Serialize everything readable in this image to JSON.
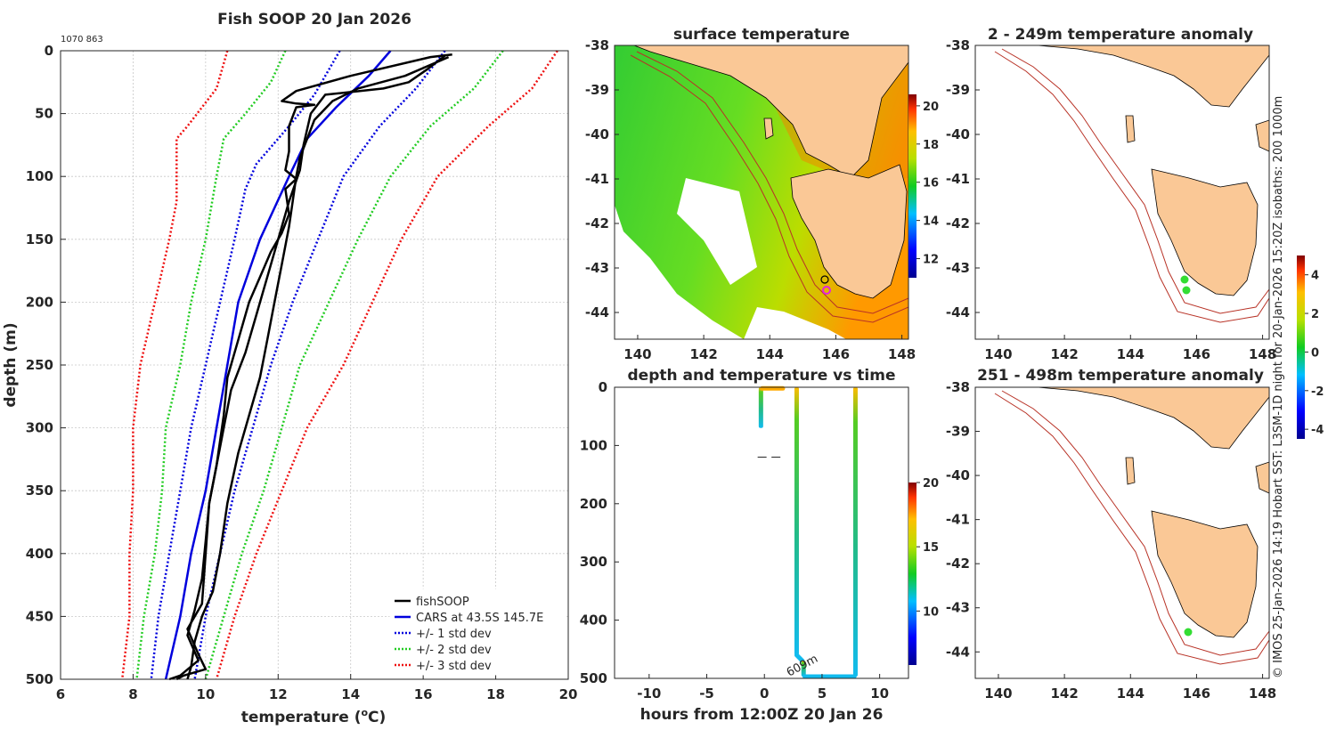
{
  "colors": {
    "fishsoop": "#000000",
    "cars": "#0000dd",
    "std1": "#0000dd",
    "std2": "#22cc22",
    "std3": "#ee1111",
    "land": "#fac896",
    "coast": "#000000",
    "isobath": "#b83226"
  },
  "profile_chart": {
    "title": "Fish SOOP 20 Jan 2026",
    "ids_label": "1070 863",
    "xlabel_prefix": "temperature (",
    "xlabel_sup": "o",
    "xlabel_suffix": "C)",
    "ylabel": "depth (m)",
    "xlim": [
      6,
      20
    ],
    "ylim": [
      500,
      0
    ],
    "xticks": [
      "6",
      "8",
      "10",
      "12",
      "14",
      "16",
      "18",
      "20"
    ],
    "yticks": [
      "0",
      "50",
      "100",
      "150",
      "200",
      "250",
      "300",
      "350",
      "400",
      "450",
      "500"
    ],
    "legend": [
      {
        "label": "fishSOOP",
        "style": "solid-black"
      },
      {
        "label": "CARS at 43.5S 145.7E",
        "style": "solid-blue"
      },
      {
        "label": "+/- 1 std dev",
        "style": "dotted-blue"
      },
      {
        "label": "+/- 2 std dev",
        "style": "dotted-green"
      },
      {
        "label": "+/- 3 std dev",
        "style": "dotted-red"
      }
    ],
    "chart_data": {
      "type": "line",
      "series": [
        {
          "name": "CARS at 43.5S 145.7E",
          "kind": "cars",
          "points": [
            [
              15.1,
              0
            ],
            [
              14.5,
              20
            ],
            [
              13.6,
              45
            ],
            [
              12.8,
              70
            ],
            [
              12.3,
              100
            ],
            [
              11.9,
              125
            ],
            [
              11.5,
              150
            ],
            [
              11.2,
              175
            ],
            [
              10.9,
              200
            ],
            [
              10.6,
              250
            ],
            [
              10.3,
              300
            ],
            [
              10.0,
              350
            ],
            [
              9.6,
              400
            ],
            [
              9.3,
              450
            ],
            [
              8.9,
              500
            ]
          ]
        },
        {
          "name": "-1 std",
          "kind": "std1",
          "points": [
            [
              13.7,
              0
            ],
            [
              13.0,
              35
            ],
            [
              12.3,
              60
            ],
            [
              11.4,
              90
            ],
            [
              11.1,
              110
            ],
            [
              10.8,
              150
            ],
            [
              10.4,
              200
            ],
            [
              10.0,
              250
            ],
            [
              9.6,
              300
            ],
            [
              9.3,
              350
            ],
            [
              9.0,
              400
            ],
            [
              8.7,
              450
            ],
            [
              8.5,
              500
            ]
          ]
        },
        {
          "name": "+1 std",
          "kind": "std1",
          "points": [
            [
              16.6,
              0
            ],
            [
              15.8,
              30
            ],
            [
              14.8,
              60
            ],
            [
              13.8,
              100
            ],
            [
              13.1,
              150
            ],
            [
              12.4,
              200
            ],
            [
              11.8,
              250
            ],
            [
              11.3,
              300
            ],
            [
              10.8,
              350
            ],
            [
              10.4,
              400
            ],
            [
              10.0,
              450
            ],
            [
              9.7,
              500
            ]
          ]
        },
        {
          "name": "-2 std",
          "kind": "std2",
          "points": [
            [
              12.2,
              0
            ],
            [
              11.8,
              25
            ],
            [
              11.1,
              50
            ],
            [
              10.5,
              70
            ],
            [
              10.3,
              100
            ],
            [
              10.0,
              150
            ],
            [
              9.6,
              200
            ],
            [
              9.3,
              250
            ],
            [
              8.9,
              300
            ],
            [
              8.8,
              350
            ],
            [
              8.6,
              400
            ],
            [
              8.3,
              450
            ],
            [
              8.1,
              500
            ]
          ]
        },
        {
          "name": "+2 std",
          "kind": "std2",
          "points": [
            [
              18.2,
              0
            ],
            [
              17.4,
              30
            ],
            [
              16.2,
              60
            ],
            [
              15.1,
              100
            ],
            [
              14.2,
              150
            ],
            [
              13.4,
              200
            ],
            [
              12.6,
              250
            ],
            [
              12.1,
              300
            ],
            [
              11.6,
              350
            ],
            [
              11.0,
              400
            ],
            [
              10.5,
              450
            ],
            [
              10.0,
              500
            ]
          ]
        },
        {
          "name": "-3 std",
          "kind": "std3",
          "points": [
            [
              10.6,
              0
            ],
            [
              10.3,
              30
            ],
            [
              9.9,
              45
            ],
            [
              9.5,
              60
            ],
            [
              9.2,
              70
            ],
            [
              9.2,
              100
            ],
            [
              9.2,
              120
            ],
            [
              9.0,
              150
            ],
            [
              8.6,
              200
            ],
            [
              8.2,
              250
            ],
            [
              8.0,
              300
            ],
            [
              8.0,
              350
            ],
            [
              7.9,
              400
            ],
            [
              7.9,
              450
            ],
            [
              7.7,
              500
            ]
          ]
        },
        {
          "name": "+3 std",
          "kind": "std3",
          "points": [
            [
              19.7,
              0
            ],
            [
              19.0,
              30
            ],
            [
              17.8,
              60
            ],
            [
              16.4,
              100
            ],
            [
              15.4,
              150
            ],
            [
              14.6,
              200
            ],
            [
              13.8,
              250
            ],
            [
              12.8,
              300
            ],
            [
              12.1,
              350
            ],
            [
              11.4,
              400
            ],
            [
              10.8,
              450
            ],
            [
              10.3,
              500
            ]
          ]
        },
        {
          "name": "fishSOOP cast 1",
          "kind": "fish",
          "points": [
            [
              16.8,
              3
            ],
            [
              16.2,
              5
            ],
            [
              14.0,
              20
            ],
            [
              12.5,
              32
            ],
            [
              12.1,
              40
            ],
            [
              12.5,
              42
            ],
            [
              13.0,
              43
            ],
            [
              12.5,
              45
            ],
            [
              12.3,
              60
            ],
            [
              12.3,
              80
            ],
            [
              12.2,
              95
            ],
            [
              12.5,
              102
            ],
            [
              12.2,
              110
            ],
            [
              12.3,
              130
            ],
            [
              12.1,
              145
            ],
            [
              11.8,
              160
            ],
            [
              11.5,
              180
            ],
            [
              11.2,
              200
            ],
            [
              10.9,
              230
            ],
            [
              10.6,
              260
            ],
            [
              10.5,
              290
            ],
            [
              10.3,
              330
            ],
            [
              10.1,
              360
            ],
            [
              10.0,
              400
            ],
            [
              9.9,
              440
            ],
            [
              9.5,
              460
            ],
            [
              9.8,
              480
            ],
            [
              10.0,
              492
            ],
            [
              9.4,
              497
            ],
            [
              9.2,
              500
            ]
          ]
        },
        {
          "name": "fishSOOP cast 2",
          "kind": "fish",
          "points": [
            [
              16.7,
              5
            ],
            [
              16.3,
              10
            ],
            [
              15.5,
              20
            ],
            [
              14.2,
              30
            ],
            [
              13.5,
              40
            ],
            [
              13.0,
              55
            ],
            [
              12.8,
              70
            ],
            [
              12.6,
              85
            ],
            [
              12.5,
              100
            ],
            [
              12.4,
              120
            ],
            [
              12.3,
              140
            ],
            [
              12.1,
              170
            ],
            [
              11.9,
              200
            ],
            [
              11.7,
              230
            ],
            [
              11.5,
              260
            ],
            [
              11.2,
              290
            ],
            [
              10.9,
              320
            ],
            [
              10.6,
              360
            ],
            [
              10.4,
              400
            ],
            [
              10.2,
              430
            ],
            [
              9.9,
              450
            ],
            [
              9.7,
              470
            ],
            [
              9.6,
              490
            ],
            [
              9.5,
              500
            ]
          ]
        },
        {
          "name": "fishSOOP cast 3",
          "kind": "fish",
          "points": [
            [
              16.6,
              4
            ],
            [
              16.1,
              15
            ],
            [
              15.6,
              25
            ],
            [
              14.9,
              30
            ],
            [
              13.3,
              35
            ],
            [
              12.9,
              50
            ],
            [
              12.7,
              75
            ],
            [
              12.6,
              95
            ],
            [
              12.3,
              120
            ],
            [
              12.0,
              150
            ],
            [
              11.7,
              180
            ],
            [
              11.4,
              210
            ],
            [
              11.1,
              240
            ],
            [
              10.7,
              270
            ],
            [
              10.5,
              300
            ],
            [
              10.3,
              330
            ],
            [
              10.1,
              360
            ],
            [
              10.0,
              390
            ],
            [
              9.9,
              420
            ],
            [
              9.7,
              445
            ],
            [
              9.5,
              465
            ],
            [
              9.8,
              485
            ],
            [
              9.3,
              497
            ],
            [
              9.0,
              500
            ]
          ]
        }
      ]
    }
  },
  "sst_map": {
    "title": "surface temperature",
    "yticks": [
      "-38",
      "-39",
      "-40",
      "-41",
      "-42",
      "-43",
      "-44"
    ],
    "xticks": [
      "140",
      "142",
      "144",
      "146",
      "148"
    ],
    "colorbar_ticks": [
      "20",
      "18",
      "16",
      "14",
      "12"
    ]
  },
  "anom_map_1": {
    "title": "2 - 249m temperature anomaly",
    "yticks": [
      "-38",
      "-39",
      "-40",
      "-41",
      "-42",
      "-43",
      "-44"
    ],
    "xticks": [
      "140",
      "142",
      "144",
      "146",
      "148"
    ]
  },
  "anom_map_2": {
    "title": "251 - 498m temperature anomaly",
    "yticks": [
      "-38",
      "-39",
      "-40",
      "-41",
      "-42",
      "-43",
      "-44"
    ],
    "xticks": [
      "140",
      "142",
      "144",
      "146",
      "148"
    ]
  },
  "anom_colorbar_ticks": [
    "4",
    "2",
    "0",
    "-2",
    "-4"
  ],
  "time_chart": {
    "title": "depth and temperature vs time",
    "xlabel": "hours from 12:00Z 20 Jan 26",
    "xticks": [
      "-10",
      "-5",
      "0",
      "5",
      "10"
    ],
    "yticks": [
      "0",
      "100",
      "200",
      "300",
      "400",
      "500"
    ],
    "colorbar_ticks": [
      "20",
      "15",
      "10"
    ],
    "max_depth_label": "609m",
    "chart_data": {
      "type": "scatter",
      "xlim": [
        -13,
        12.5
      ],
      "ylim": [
        500,
        0
      ],
      "x_label": "hours from 12:00Z 20 Jan 26",
      "y_label": "depth",
      "color_scale": [
        8,
        20
      ],
      "tracks": [
        {
          "name": "cast 1",
          "points": [
            [
              -0.3,
              0,
              17
            ],
            [
              -0.3,
              70,
              15
            ]
          ]
        },
        {
          "name": "surface",
          "points": [
            [
              -0.2,
              2,
              17
            ],
            [
              1.6,
              2,
              17
            ]
          ]
        },
        {
          "name": "cast 2",
          "points": [
            [
              2.8,
              0,
              17
            ],
            [
              2.8,
              460,
              10
            ],
            [
              3.3,
              470,
              10
            ],
            [
              3.5,
              497,
              10
            ],
            [
              7.8,
              497,
              10
            ],
            [
              8.0,
              0,
              17
            ]
          ]
        }
      ],
      "dash_marks": [
        [
          -0.2,
          120
        ],
        [
          1.0,
          120
        ]
      ]
    }
  },
  "side_text": "© IMOS 25-Jan-2026 14:19 Hobart SST: L3SM-1D night for 20-Jan-2026 15:20Z isobaths: 200  1000m"
}
